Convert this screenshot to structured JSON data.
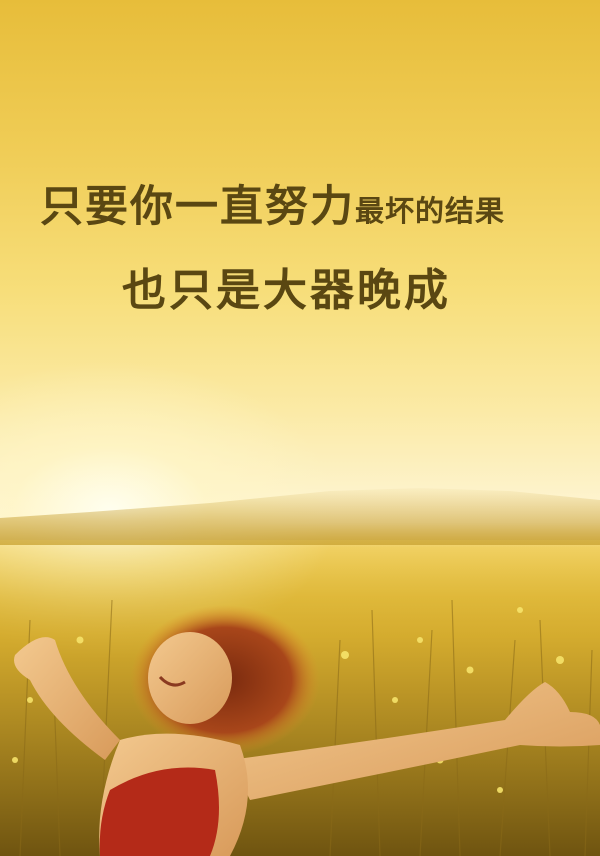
{
  "poster": {
    "headline_large": "只要你一直努力",
    "headline_small": "最坏的结果",
    "headline_line2": "也只是大器晚成"
  }
}
